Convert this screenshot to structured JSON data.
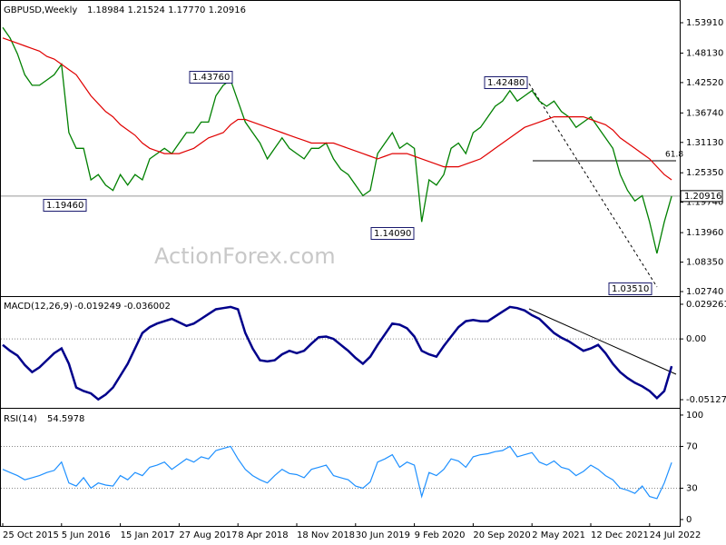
{
  "chart_data": [
    {
      "type": "line",
      "title": "GBPUSD,Weekly",
      "subtitle": "1.18984 1.21524 1.17770 1.20916",
      "watermark": "ActionForex.com",
      "categories": [
        "25 Oct 2015",
        null,
        null,
        null,
        null,
        null,
        null,
        null,
        "5 Jun 2016",
        null,
        null,
        null,
        null,
        null,
        null,
        null,
        "15 Jan 2017",
        null,
        null,
        null,
        null,
        null,
        null,
        null,
        "27 Aug 2017",
        null,
        null,
        null,
        null,
        null,
        null,
        null,
        "8 Apr 2018",
        null,
        null,
        null,
        null,
        null,
        null,
        null,
        "18 Nov 2018",
        null,
        null,
        null,
        null,
        null,
        null,
        null,
        "30 Jun 2019",
        null,
        null,
        null,
        null,
        null,
        null,
        null,
        "9 Feb 2020",
        null,
        null,
        null,
        null,
        null,
        null,
        null,
        "20 Sep 2020",
        null,
        null,
        null,
        null,
        null,
        null,
        null,
        "2 May 2021",
        null,
        null,
        null,
        null,
        null,
        null,
        null,
        "12 Dec 2021",
        null,
        null,
        null,
        null,
        null,
        null,
        null,
        "24 Jul 2022",
        null,
        null,
        null
      ],
      "series": [
        {
          "color": "#008000",
          "values": [
            1.53,
            1.51,
            1.48,
            1.44,
            1.42,
            1.42,
            1.43,
            1.44,
            1.46,
            1.33,
            1.3,
            1.3,
            1.24,
            1.25,
            1.23,
            1.22,
            1.25,
            1.23,
            1.25,
            1.24,
            1.28,
            1.29,
            1.3,
            1.29,
            1.31,
            1.33,
            1.33,
            1.35,
            1.35,
            1.4,
            1.42,
            1.43,
            1.39,
            1.35,
            1.33,
            1.31,
            1.28,
            1.3,
            1.32,
            1.3,
            1.29,
            1.28,
            1.3,
            1.3,
            1.31,
            1.28,
            1.26,
            1.25,
            1.23,
            1.21,
            1.22,
            1.29,
            1.31,
            1.33,
            1.3,
            1.31,
            1.3,
            1.16,
            1.24,
            1.23,
            1.25,
            1.3,
            1.31,
            1.29,
            1.33,
            1.34,
            1.36,
            1.38,
            1.39,
            1.41,
            1.39,
            1.4,
            1.41,
            1.39,
            1.38,
            1.39,
            1.37,
            1.36,
            1.34,
            1.35,
            1.36,
            1.34,
            1.32,
            1.3,
            1.25,
            1.22,
            1.2,
            1.21,
            1.16,
            1.1,
            1.16,
            1.20916
          ]
        },
        {
          "color": "#e00000",
          "values": [
            1.51,
            1.505,
            1.5,
            1.495,
            1.49,
            1.485,
            1.475,
            1.47,
            1.46,
            1.45,
            1.44,
            1.42,
            1.4,
            1.385,
            1.37,
            1.36,
            1.345,
            1.335,
            1.325,
            1.31,
            1.3,
            1.295,
            1.29,
            1.29,
            1.29,
            1.295,
            1.3,
            1.31,
            1.32,
            1.325,
            1.33,
            1.345,
            1.355,
            1.355,
            1.35,
            1.345,
            1.34,
            1.335,
            1.33,
            1.325,
            1.32,
            1.315,
            1.31,
            1.31,
            1.31,
            1.31,
            1.305,
            1.3,
            1.295,
            1.29,
            1.285,
            1.28,
            1.285,
            1.29,
            1.29,
            1.29,
            1.285,
            1.28,
            1.275,
            1.27,
            1.265,
            1.265,
            1.265,
            1.27,
            1.275,
            1.28,
            1.29,
            1.3,
            1.31,
            1.32,
            1.33,
            1.34,
            1.345,
            1.35,
            1.355,
            1.36,
            1.36,
            1.36,
            1.36,
            1.36,
            1.355,
            1.35,
            1.345,
            1.335,
            1.32,
            1.31,
            1.3,
            1.29,
            1.28,
            1.265,
            1.25,
            1.24
          ]
        }
      ],
      "ylim": [
        1.0205,
        1.5737
      ],
      "yticks": [
        {
          "value": 1.5391,
          "label": "1.53910"
        },
        {
          "value": 1.4813,
          "label": "1.48130"
        },
        {
          "value": 1.4252,
          "label": "1.42520"
        },
        {
          "value": 1.3674,
          "label": "1.36740"
        },
        {
          "value": 1.3113,
          "label": "1.31130"
        },
        {
          "value": 1.2535,
          "label": "1.25350"
        },
        {
          "value": 1.1974,
          "label": "1.19740"
        },
        {
          "value": 1.1396,
          "label": "1.13960"
        },
        {
          "value": 1.0835,
          "label": "1.08350"
        },
        {
          "value": 1.0274,
          "label": "1.02740"
        }
      ],
      "annotations": [
        "1.43760",
        "1.19460",
        "1.14090",
        "1.42480",
        "1.03510"
      ],
      "last_price": 1.20916,
      "fib": {
        "label": "61.8",
        "value": 1.2764
      }
    },
    {
      "type": "line",
      "title": "MACD(12,26,9)",
      "subtitle": "-0.019249 -0.036002",
      "series": [
        {
          "color": "#00008b",
          "values": [
            -0.005,
            -0.01,
            -0.014,
            -0.022,
            -0.028,
            -0.024,
            -0.018,
            -0.012,
            -0.008,
            -0.021,
            -0.041,
            -0.044,
            -0.046,
            -0.051,
            -0.047,
            -0.041,
            -0.031,
            -0.021,
            -0.008,
            0.005,
            0.01,
            0.013,
            0.015,
            0.017,
            0.014,
            0.011,
            0.013,
            0.017,
            0.021,
            0.025,
            0.026,
            0.027,
            0.025,
            0.005,
            -0.008,
            -0.018,
            -0.019,
            -0.018,
            -0.013,
            -0.01,
            -0.012,
            -0.01,
            -0.004,
            0.0015,
            0.002,
            0.0,
            -0.005,
            -0.01,
            -0.016,
            -0.021,
            -0.015,
            -0.005,
            0.004,
            0.013,
            0.012,
            0.009,
            0.002,
            -0.01,
            -0.013,
            -0.015,
            -0.006,
            0.002,
            0.01,
            0.015,
            0.016,
            0.015,
            0.015,
            0.019,
            0.023,
            0.027,
            0.026,
            0.024,
            0.02,
            0.017,
            0.011,
            0.005,
            0.001,
            -0.002,
            -0.006,
            -0.01,
            -0.008,
            -0.005,
            -0.012,
            -0.021,
            -0.028,
            -0.033,
            -0.037,
            -0.04,
            -0.044,
            -0.05,
            -0.044,
            -0.023
          ]
        }
      ],
      "ylim": [
        -0.0574,
        0.0346
      ],
      "yticks": [
        0.029261,
        {
          "value": 0,
          "label": "0.00"
        },
        -0.051279
      ],
      "levels": [
        0
      ]
    },
    {
      "type": "line",
      "title": "RSI(14)",
      "subtitle": "54.5978",
      "series": [
        {
          "color": "#1e90ff",
          "values": [
            48,
            45,
            42,
            38,
            40,
            42,
            45,
            47,
            55,
            35,
            32,
            40,
            30,
            35,
            33,
            32,
            42,
            38,
            45,
            42,
            50,
            52,
            55,
            48,
            53,
            58,
            55,
            60,
            58,
            66,
            68,
            70,
            58,
            48,
            42,
            38,
            35,
            42,
            48,
            44,
            43,
            40,
            48,
            50,
            52,
            42,
            40,
            38,
            32,
            30,
            36,
            55,
            58,
            62,
            50,
            55,
            52,
            22,
            45,
            42,
            48,
            58,
            56,
            50,
            60,
            62,
            63,
            65,
            66,
            70,
            60,
            62,
            64,
            55,
            52,
            56,
            50,
            48,
            42,
            46,
            52,
            48,
            42,
            38,
            30,
            28,
            25,
            32,
            22,
            20,
            35,
            54.5978
          ]
        }
      ],
      "ylim": [
        -7,
        104.3
      ],
      "yticks": [
        100,
        70,
        30,
        0
      ],
      "levels": [
        30,
        70
      ]
    }
  ]
}
